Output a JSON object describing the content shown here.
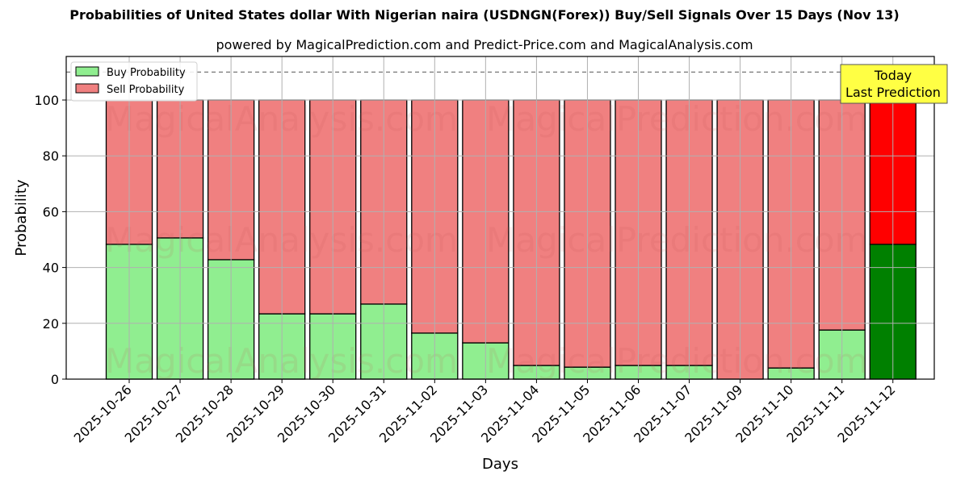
{
  "header": {
    "title": "Probabilities of United States dollar With Nigerian naira (USDNGN(Forex)) Buy/Sell Signals Over 15 Days (Nov 13)",
    "subtitle": "powered by MagicalPrediction.com and Predict-Price.com and MagicalAnalysis.com"
  },
  "legend": {
    "buy_label": "Buy Probability",
    "sell_label": "Sell Probability"
  },
  "annotation": {
    "line1": "Today",
    "line2": "Last Prediction"
  },
  "watermarks": [
    "MagicalAnalysis.com",
    "MagicalPrediction.com"
  ],
  "colors": {
    "buy": "#90ee90",
    "sell": "#f08080",
    "today_buy": "#008000",
    "today_sell": "#ff0000",
    "annotation_bg": "#ffff44"
  },
  "chart_data": {
    "type": "bar",
    "stacked": true,
    "title": "Probabilities of United States dollar With Nigerian naira (USDNGN(Forex)) Buy/Sell Signals Over 15 Days (Nov 13)",
    "subtitle": "powered by MagicalPrediction.com and Predict-Price.com and MagicalAnalysis.com",
    "xlabel": "Days",
    "ylabel": "Probability",
    "ylim": [
      0,
      115
    ],
    "yticks": [
      0,
      20,
      40,
      60,
      80,
      100
    ],
    "reference_line": 110,
    "grid": true,
    "legend_position": "upper left",
    "categories": [
      "2025-10-26",
      "2025-10-27",
      "2025-10-28",
      "2025-10-29",
      "2025-10-30",
      "2025-10-31",
      "2025-11-02",
      "2025-11-03",
      "2025-11-04",
      "2025-11-05",
      "2025-11-06",
      "2025-11-07",
      "2025-11-09",
      "2025-11-10",
      "2025-11-11",
      "2025-11-12"
    ],
    "series": [
      {
        "name": "Buy Probability",
        "values": [
          48.3,
          50.6,
          42.8,
          23.4,
          23.4,
          26.9,
          16.5,
          13.0,
          4.9,
          4.3,
          4.9,
          4.9,
          0.0,
          4.0,
          17.6,
          48.3
        ]
      },
      {
        "name": "Sell Probability",
        "values": [
          51.7,
          49.4,
          57.2,
          76.6,
          76.6,
          73.1,
          83.5,
          87.0,
          95.1,
          95.7,
          95.1,
          95.1,
          100.0,
          96.0,
          82.4,
          51.7
        ]
      }
    ],
    "annotations": [
      {
        "text": "Today\nLast Prediction",
        "category": "2025-11-12"
      }
    ]
  }
}
